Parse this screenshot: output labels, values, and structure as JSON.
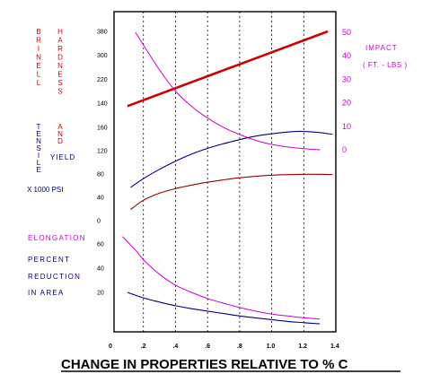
{
  "chart_data": {
    "type": "line",
    "title": "CHANGE  IN  PROPERTIES  RELATIVE  TO  %  C",
    "x_ticks": [
      "0",
      ".2",
      ".4",
      ".6",
      ".8",
      "1.0",
      "1.2",
      "1.4"
    ],
    "xlim": [
      0,
      1.4
    ],
    "grid": "vertical dashed",
    "left_labels": {
      "brinell": "BRINELL",
      "hardness": "HARDNESS",
      "tensile": "TENSILE",
      "and": "AND",
      "yield": "YIELD",
      "psi": "X 1000 PSI",
      "elongation": "ELONGATION",
      "percent": "PERCENT",
      "reduction": "REDUCTION",
      "in_area": "IN AREA"
    },
    "right_labels": {
      "impact": "IMPACT",
      "units": "( FT. - LBS )"
    },
    "hardness_ticks": [
      "380",
      "300",
      "220",
      "140"
    ],
    "tensile_ticks": [
      "160",
      "120",
      "80",
      "40",
      "0"
    ],
    "elongation_ticks": [
      "60",
      "40",
      "20"
    ],
    "impact_ticks": [
      "50",
      "40",
      "30",
      "20",
      "10",
      "0"
    ],
    "colors": {
      "hardness": "#cc0000",
      "impact": "#cc00cc",
      "tensile": "#000080",
      "yield": "#990000",
      "elongation": "#cc00cc",
      "reduction": "#000080",
      "label_red": "#cc0000",
      "label_blue": "#000080",
      "label_magenta": "#cc00cc"
    },
    "series": [
      {
        "name": "BRINELL HARDNESS",
        "axis": "hardness",
        "x": [
          0.1,
          1.35
        ],
        "y": [
          130,
          380
        ]
      },
      {
        "name": "IMPACT",
        "axis": "impact",
        "x": [
          0.15,
          0.3,
          0.4,
          0.5,
          0.6,
          0.7,
          0.8,
          0.9,
          1.0,
          1.1,
          1.2,
          1.3
        ],
        "y": [
          50,
          34,
          25,
          18.5,
          13.5,
          9.5,
          6.5,
          4,
          2.3,
          1.2,
          0.5,
          0
        ]
      },
      {
        "name": "TENSILE",
        "axis": "tensile",
        "x": [
          0.12,
          0.2,
          0.3,
          0.4,
          0.5,
          0.6,
          0.7,
          0.8,
          0.9,
          1.0,
          1.1,
          1.15,
          1.2,
          1.3,
          1.38
        ],
        "y": [
          57,
          72,
          88,
          102,
          114,
          124,
          132,
          139,
          145,
          149,
          152,
          153,
          153,
          151,
          148
        ]
      },
      {
        "name": "YIELD",
        "axis": "tensile",
        "x": [
          0.12,
          0.2,
          0.3,
          0.4,
          0.5,
          0.6,
          0.7,
          0.8,
          0.9,
          1.0,
          1.1,
          1.2,
          1.3,
          1.38
        ],
        "y": [
          19,
          35,
          47,
          55,
          61,
          66,
          70,
          73.5,
          76,
          78,
          79,
          79.5,
          79.5,
          79
        ]
      },
      {
        "name": "ELONGATION",
        "axis": "elongation",
        "x": [
          0.07,
          0.15,
          0.2,
          0.3,
          0.4,
          0.5,
          0.6,
          0.7,
          0.8,
          0.9,
          1.0,
          1.1,
          1.2,
          1.3
        ],
        "y": [
          66,
          55,
          47,
          35,
          26,
          20,
          15,
          11,
          7.5,
          4.5,
          2,
          0.5,
          -1,
          -2
        ]
      },
      {
        "name": "REDUCTION IN AREA",
        "axis": "elongation",
        "x": [
          0.1,
          0.2,
          0.3,
          0.4,
          0.5,
          0.6,
          0.7,
          0.8,
          0.9,
          1.0,
          1.1,
          1.2,
          1.3
        ],
        "y": [
          20,
          15.5,
          12,
          9,
          6.5,
          4.5,
          2.5,
          0.5,
          -1,
          -2.5,
          -4,
          -5,
          -6
        ]
      }
    ]
  }
}
